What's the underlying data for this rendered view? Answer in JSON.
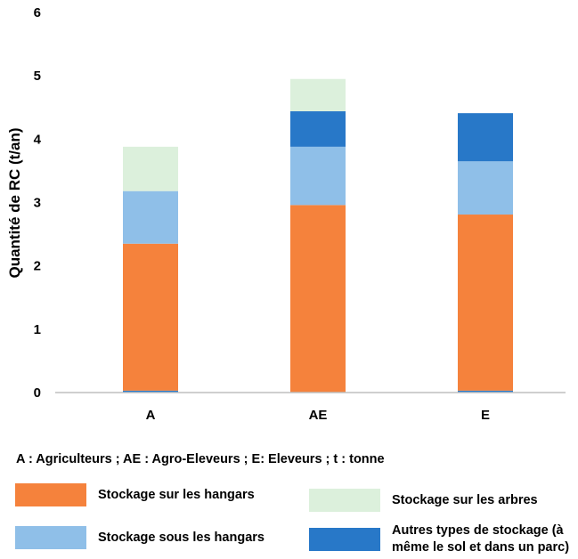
{
  "chart_data": {
    "type": "bar",
    "stacked": true,
    "categories": [
      "A",
      "AE",
      "E"
    ],
    "ylabel": "Quantité de RC (t/an)",
    "xlabel": "",
    "ylim": [
      0,
      6
    ],
    "yticks": [
      "0",
      "1",
      "2",
      "3",
      "4",
      "5",
      "6"
    ],
    "grid": false,
    "series": [
      {
        "key": "stockage-autres-base",
        "values": [
          0.03,
          0.0,
          0.03
        ],
        "color": "#2878c8"
      },
      {
        "key": "stockage-sur-hangars",
        "values": [
          2.32,
          2.96,
          2.78
        ],
        "color": "#f5823c"
      },
      {
        "key": "stockage-sous-hangars",
        "values": [
          0.83,
          0.92,
          0.84
        ],
        "color": "#8fbfe8"
      },
      {
        "key": "stockage-autres",
        "values": [
          0.0,
          0.56,
          0.76
        ],
        "color": "#2878c8"
      },
      {
        "key": "stockage-sur-arbres",
        "values": [
          0.7,
          0.51,
          0.0
        ],
        "color": "#dcf0dc"
      }
    ]
  },
  "abbreviations": "A : Agriculteurs ;  AE : Agro-Eleveurs ; E: Eleveurs ; t : tonne",
  "legend": [
    {
      "label": "Stockage sur les hangars",
      "color": "#f5823c"
    },
    {
      "label": "Stockage sur les arbres",
      "color": "#dcf0dc"
    },
    {
      "label": "Stockage sous les hangars",
      "color": "#8fbfe8"
    },
    {
      "label_line1": "Autres types de stockage (à",
      "label_line2": "même le sol et dans un parc)",
      "color": "#2878c8"
    }
  ]
}
